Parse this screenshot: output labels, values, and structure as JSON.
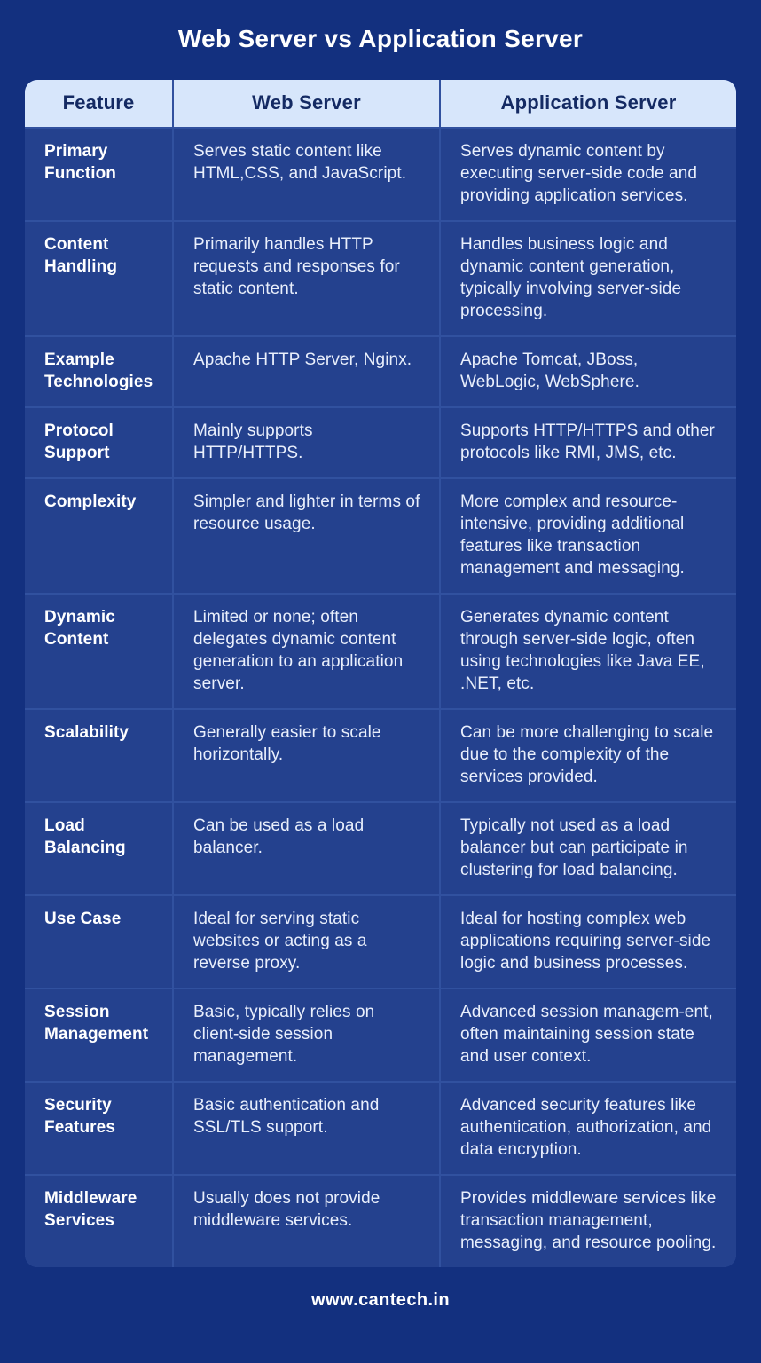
{
  "page": {
    "title": "Web Server vs Application Server",
    "footer": "www.cantech.in",
    "colors": {
      "background": "#13307f",
      "cell_background": "#24418e",
      "gridline": "#31519f",
      "header_background": "#d7e6fb",
      "header_text": "#142a63",
      "body_text": "#e9effc",
      "title_text": "#ffffff"
    }
  },
  "table": {
    "columns": [
      "Feature",
      "Web Server",
      "Application Server"
    ],
    "rows": [
      {
        "feature": "Primary Function",
        "web": "Serves static content like HTML,CSS, and JavaScript.",
        "app": "Serves dynamic content by executing server-side code and providing application services."
      },
      {
        "feature": "Content Handling",
        "web": "Primarily handles HTTP requests and responses for static content.",
        "app": "Handles business logic and dynamic content generation, typically involving server-side processing."
      },
      {
        "feature": "Example Technologies",
        "web": "Apache HTTP Server, Nginx.",
        "app": "Apache Tomcat, JBoss, WebLogic, WebSphere."
      },
      {
        "feature": "Protocol Support",
        "web": "Mainly supports HTTP/HTTPS.",
        "app": "Supports HTTP/HTTPS and other protocols like RMI, JMS, etc."
      },
      {
        "feature": "Complexity",
        "web": "Simpler and lighter in terms of resource usage.",
        "app": "More complex and resource-intensive, providing additional features like transaction management and messaging."
      },
      {
        "feature": "Dynamic Content",
        "web": "Limited or none; often delegates dynamic content generation to an application server.",
        "app": "Generates dynamic content through server-side logic, often using technologies like Java EE, .NET, etc."
      },
      {
        "feature": "Scalability",
        "web": "Generally easier to scale horizontally.",
        "app": "Can be more challenging to scale due to the complexity of the services provided."
      },
      {
        "feature": "Load Balancing",
        "web": "Can be used as a load balancer.",
        "app": "Typically not used as a load balancer but can participate in clustering for load balancing."
      },
      {
        "feature": "Use Case",
        "web": "Ideal for serving static websites or acting as a reverse proxy.",
        "app": "Ideal for hosting complex web applications requiring server-side logic and business processes."
      },
      {
        "feature": "Session Management",
        "web": "Basic, typically relies on client-side session management.",
        "app": "Advanced session managem-ent, often maintaining session state and user context."
      },
      {
        "feature": "Security Features",
        "web": "Basic authentication and SSL/TLS support.",
        "app": "Advanced security features like authentication, authorization, and data encryption."
      },
      {
        "feature": "Middleware Services",
        "web": "Usually does not provide middleware services.",
        "app": "Provides middleware services like transaction management, messaging, and resource pooling."
      }
    ]
  }
}
